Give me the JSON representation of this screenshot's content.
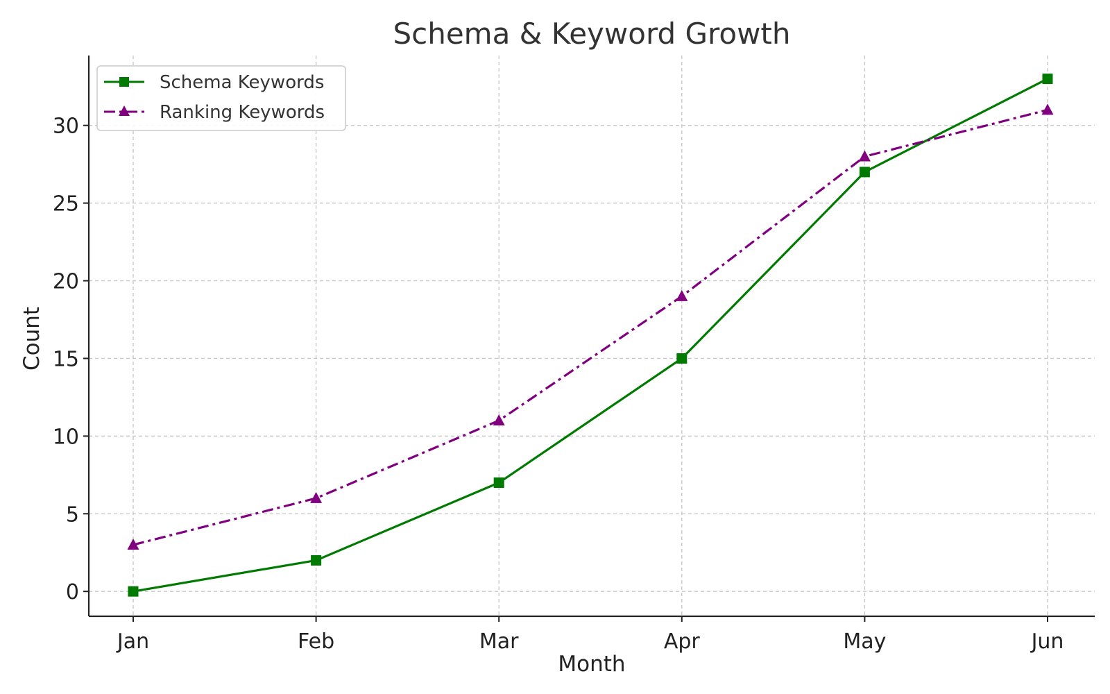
{
  "chart_data": {
    "type": "line",
    "title": "Schema & Keyword Growth",
    "xlabel": "Month",
    "ylabel": "Count",
    "categories": [
      "Jan",
      "Feb",
      "Mar",
      "Apr",
      "May",
      "Jun"
    ],
    "y_ticks": [
      0,
      5,
      10,
      15,
      20,
      25,
      30
    ],
    "ylim": [
      -1.6,
      34.5
    ],
    "grid": true,
    "legend_position": "top-left",
    "series": [
      {
        "name": "Schema Keywords",
        "values": [
          0,
          2,
          7,
          15,
          27,
          33
        ],
        "color": "#007a00",
        "marker": "square",
        "line_style": "solid"
      },
      {
        "name": "Ranking Keywords",
        "values": [
          3,
          6,
          11,
          19,
          28,
          31
        ],
        "color": "#800080",
        "marker": "triangle",
        "line_style": "dash-dot"
      }
    ]
  }
}
